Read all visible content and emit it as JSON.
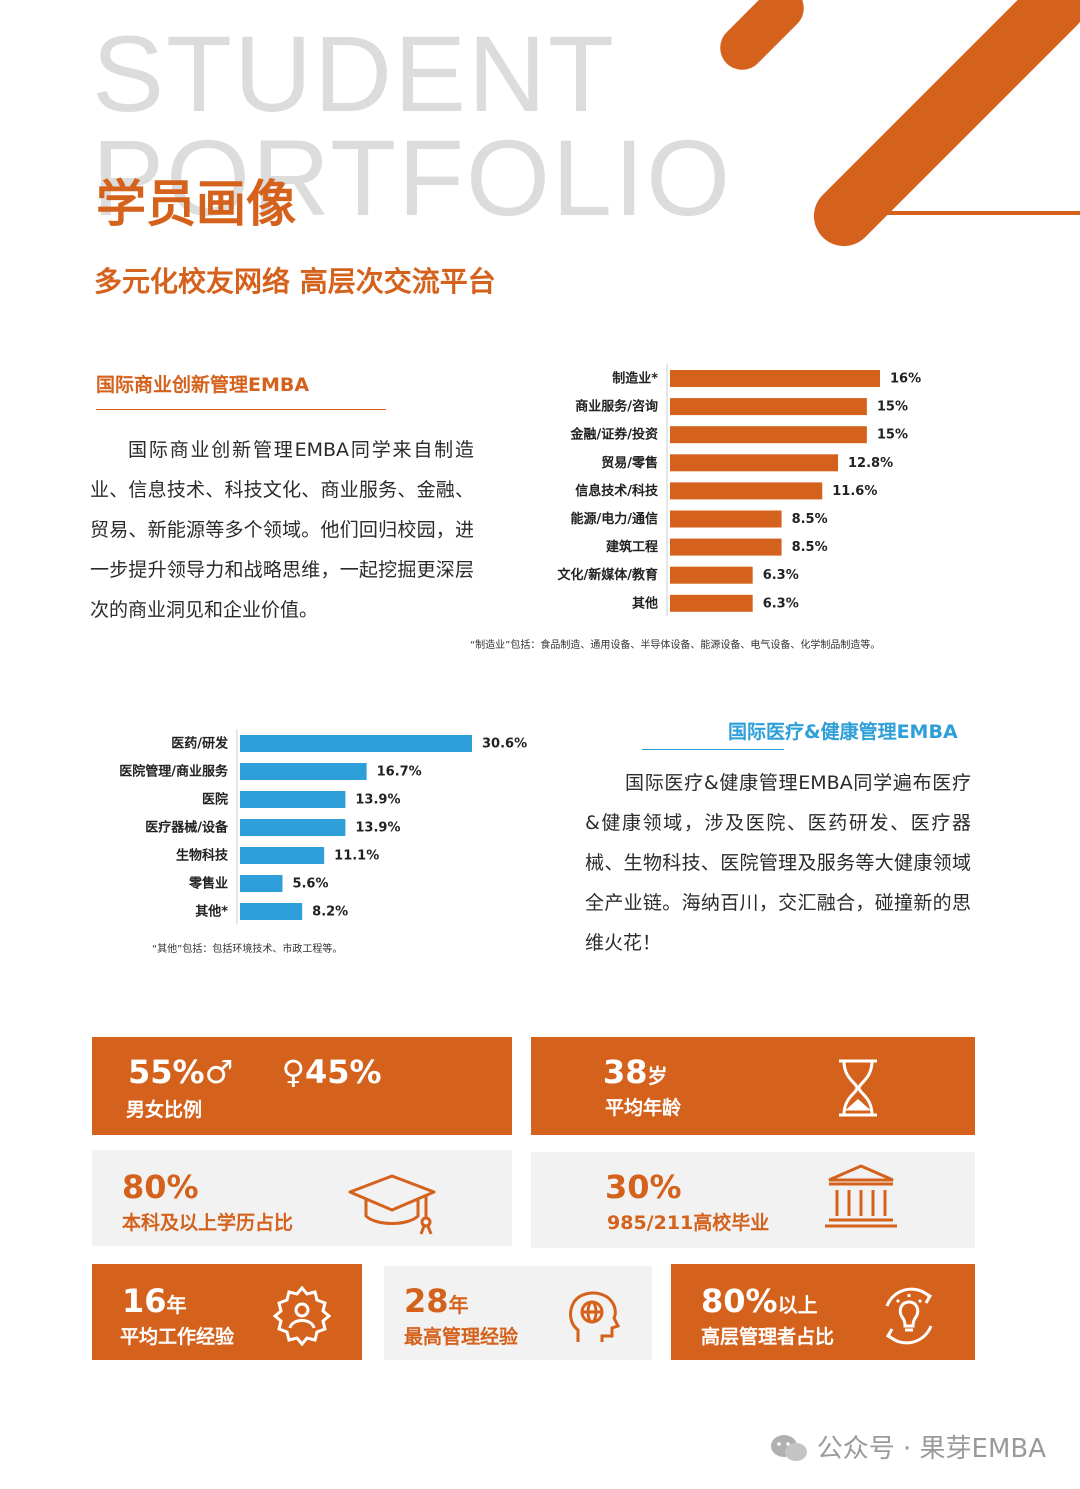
{
  "header": {
    "bg_word_1": "STUDENT",
    "bg_word_2": "PORTFOLIO",
    "title": "学员画像",
    "subtitle": "多元化校友网络 高层次交流平台"
  },
  "colors": {
    "accent": "#d4621c",
    "blue": "#2e9fd8",
    "grey_bg": "#f2f2f2"
  },
  "section1": {
    "title": "国际商业创新管理EMBA",
    "paragraph": "国际商业创新管理EMBA同学来自制造业、信息技术、科技文化、商业服务、金融、贸易、新能源等多个领域。他们回归校园，进一步提升领导力和战略思维，一起挖掘更深层次的商业洞见和企业价值。",
    "note": "“制造业”包括：食品制造、通用设备、半导体设备、能源设备、电气设备、化学制品制造等。"
  },
  "section2": {
    "title": "国际医疗&健康管理EMBA",
    "paragraph": "国际医疗&健康管理EMBA同学遍布医疗&健康领域，涉及医院、医药研发、医疗器械、生物科技、医院管理及服务等大健康领域全产业链。海纳百川，交汇融合，碰撞新的思维火花！",
    "note": "“其他”包括：包括环境技术、市政工程等。"
  },
  "chart_data": [
    {
      "type": "bar",
      "orientation": "horizontal",
      "categories": [
        "制造业*",
        "商业服务/咨询",
        "金融/证券/投资",
        "贸易/零售",
        "信息技术/科技",
        "能源/电力/通信",
        "建筑工程",
        "文化/新媒体/教育",
        "其他"
      ],
      "values": [
        16,
        15,
        15,
        12.8,
        11.6,
        8.5,
        8.5,
        6.3,
        6.3
      ],
      "value_labels": [
        "16%",
        "15%",
        "15%",
        "12.8%",
        "11.6%",
        "8.5%",
        "8.5%",
        "6.3%",
        "6.3%"
      ],
      "color": "#d4621c",
      "xlim": [
        0,
        16
      ]
    },
    {
      "type": "bar",
      "orientation": "horizontal",
      "categories": [
        "医药/研发",
        "医院管理/商业服务",
        "医院",
        "医疗器械/设备",
        "生物科技",
        "零售业",
        "其他*"
      ],
      "values": [
        30.6,
        16.7,
        13.9,
        13.9,
        11.1,
        5.6,
        8.2
      ],
      "value_labels": [
        "30.6%",
        "16.7%",
        "13.9%",
        "13.9%",
        "11.1%",
        "5.6%",
        "8.2%"
      ],
      "color": "#2e9fd8",
      "xlim": [
        0,
        30.6
      ]
    }
  ],
  "stats": {
    "gender": {
      "male": "55%",
      "male_symbol": "♂",
      "female_symbol": "♀",
      "female": "45%",
      "label": "男女比例"
    },
    "age": {
      "value": "38",
      "unit": "岁",
      "label": "平均年龄",
      "icon": "hourglass-icon"
    },
    "education": {
      "value": "80%",
      "label": "本科及以上学历占比",
      "icon": "graduation-cap-icon"
    },
    "university": {
      "value": "30%",
      "label": "985/211高校毕业",
      "icon": "university-building-icon"
    },
    "work": {
      "value": "16",
      "unit": "年",
      "label": "平均工作经验",
      "icon": "gear-person-icon"
    },
    "management": {
      "value": "28",
      "unit": "年",
      "label": "最高管理经验",
      "icon": "head-globe-icon"
    },
    "senior": {
      "value": "80%",
      "unit": "以上",
      "label": "高层管理者占比",
      "icon": "lightbulb-cycle-icon"
    }
  },
  "footer": {
    "text": "公众号 · 果芽EMBA",
    "icon": "wechat-icon"
  }
}
